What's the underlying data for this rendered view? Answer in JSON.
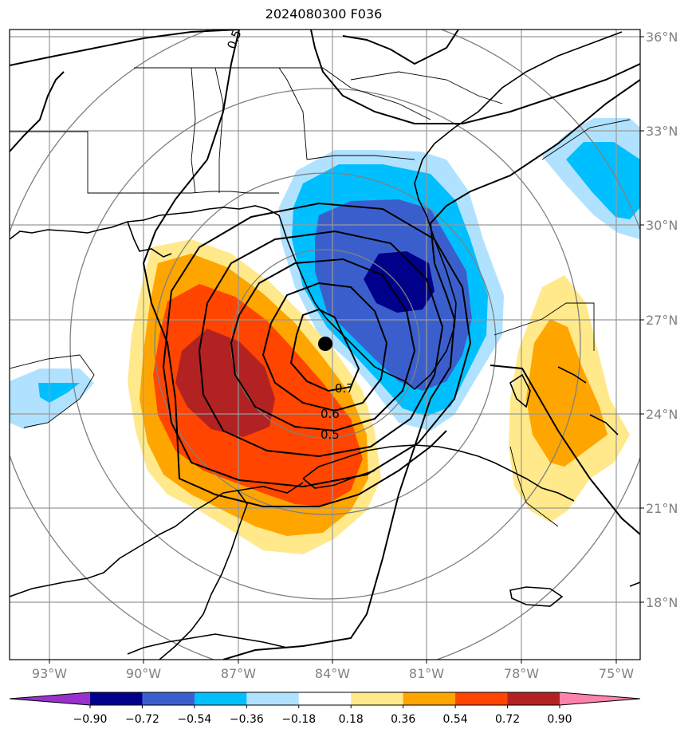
{
  "title": "2024080300 F036",
  "map": {
    "lon_labels": [
      "93°W",
      "90°W",
      "87°W",
      "84°W",
      "81°W",
      "78°W",
      "75°W"
    ],
    "lat_labels": [
      "36°N",
      "33°N",
      "30°N",
      "27°N",
      "24°N",
      "21°N",
      "18°N"
    ],
    "contour_labels": [
      "0.7",
      "0.6",
      "0.5",
      "0.5"
    ],
    "colors": {
      "neg_090": "#00008b",
      "neg_072": "#3a5fcd",
      "neg_054": "#00bfff",
      "neg_036": "#b0e2ff",
      "pos_036": "#ffe98a",
      "pos_054": "#ffa500",
      "pos_072": "#ff4500",
      "pos_090": "#b22222"
    }
  },
  "colorbar": {
    "ticks": [
      "−0.90",
      "−0.72",
      "−0.54",
      "−0.36",
      "−0.18",
      "0.18",
      "0.36",
      "0.54",
      "0.72",
      "0.90"
    ],
    "colors": [
      "#9932cc",
      "#00008b",
      "#3a5fcd",
      "#00bfff",
      "#b0e2ff",
      "#ffffff",
      "#ffe98a",
      "#ffa500",
      "#ff4500",
      "#b22222",
      "#ff82ab"
    ]
  }
}
